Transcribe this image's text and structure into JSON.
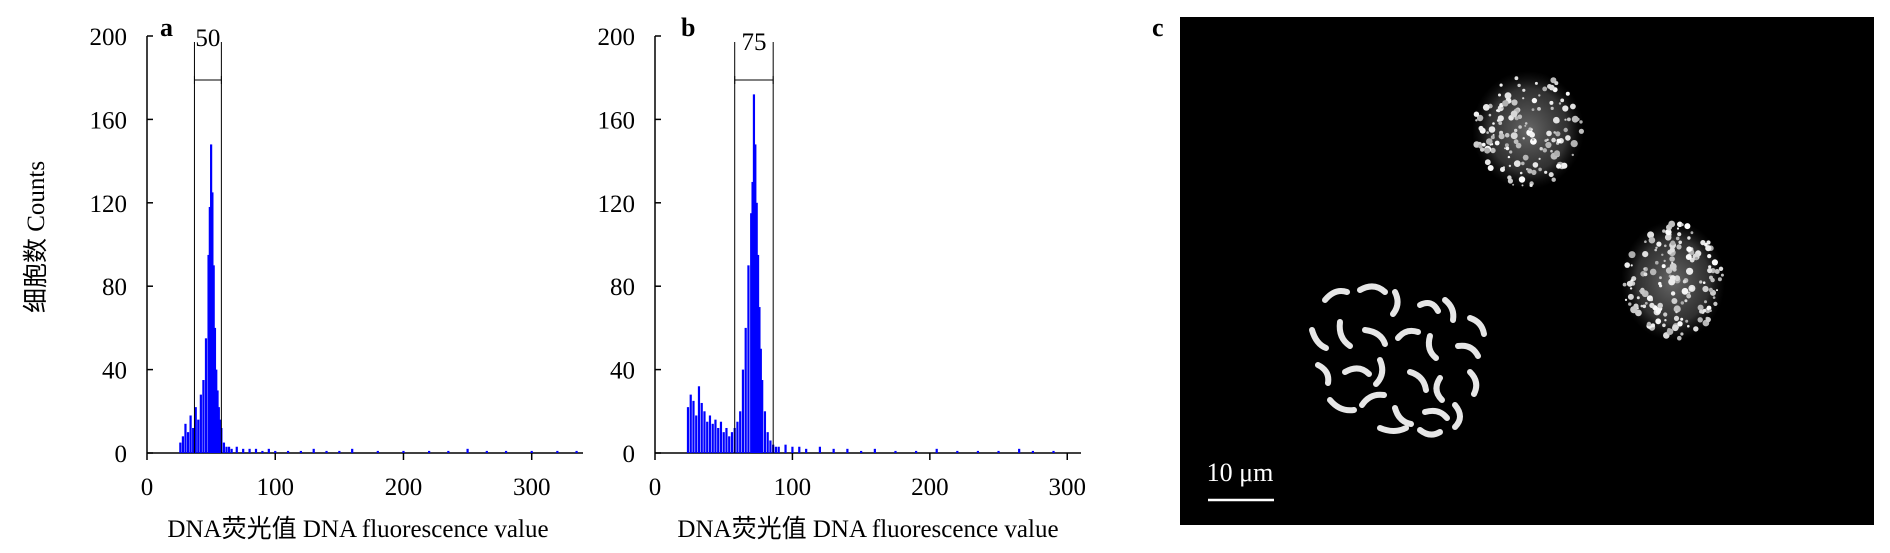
{
  "chart_data": [
    {
      "type": "histogram",
      "panel_label": "a",
      "title": "",
      "xlabel": "DNA荧光值 DNA fluorescence value",
      "ylabel": "细胞数 Counts",
      "xlim": [
        0,
        340
      ],
      "ylim": [
        0,
        200
      ],
      "xticks": [
        0,
        100,
        200,
        300
      ],
      "yticks": [
        0,
        40,
        80,
        120,
        160,
        200
      ],
      "color": "#0000ff",
      "gate": {
        "start": 37,
        "end": 58,
        "label": "50"
      },
      "bins": {
        "x": [
          26,
          28,
          30,
          32,
          34,
          36,
          38,
          40,
          42,
          44,
          46,
          48,
          49,
          50,
          51,
          52,
          53,
          54,
          55,
          56,
          57,
          58,
          60,
          62,
          64,
          66,
          70,
          75,
          80,
          85,
          90,
          95,
          100,
          110,
          120,
          130,
          140,
          150,
          160,
          180,
          200,
          220,
          235,
          250,
          265,
          280,
          300,
          320,
          335
        ],
        "counts": [
          5,
          8,
          14,
          10,
          18,
          12,
          22,
          16,
          28,
          35,
          55,
          95,
          118,
          148,
          125,
          90,
          60,
          40,
          30,
          22,
          16,
          12,
          5,
          3,
          3,
          2,
          3,
          2,
          2,
          2,
          1,
          2,
          1,
          1,
          1,
          2,
          1,
          1,
          2,
          1,
          1,
          1,
          1,
          2,
          1,
          1,
          1,
          1,
          1
        ]
      }
    },
    {
      "type": "histogram",
      "panel_label": "b",
      "title": "",
      "xlabel": "DNA荧光值 DNA fluorescence value",
      "ylabel": "",
      "xlim": [
        0,
        310
      ],
      "ylim": [
        0,
        200
      ],
      "xticks": [
        0,
        100,
        200,
        300
      ],
      "yticks": [
        0,
        40,
        80,
        120,
        160,
        200
      ],
      "color": "#0000ff",
      "gate": {
        "start": 58,
        "end": 86,
        "label": "75"
      },
      "bins": {
        "x": [
          24,
          26,
          28,
          30,
          32,
          34,
          36,
          38,
          40,
          42,
          44,
          46,
          48,
          50,
          52,
          54,
          56,
          58,
          60,
          62,
          64,
          66,
          68,
          70,
          71,
          72,
          73,
          74,
          75,
          76,
          77,
          78,
          80,
          82,
          84,
          86,
          88,
          90,
          95,
          100,
          105,
          110,
          120,
          130,
          140,
          150,
          160,
          175,
          190,
          205,
          220,
          235,
          250,
          265,
          275,
          290
        ],
        "counts": [
          22,
          28,
          25,
          18,
          32,
          24,
          20,
          15,
          18,
          14,
          16,
          12,
          15,
          10,
          12,
          8,
          10,
          12,
          15,
          20,
          40,
          60,
          90,
          115,
          130,
          172,
          148,
          120,
          95,
          70,
          50,
          35,
          20,
          10,
          6,
          4,
          3,
          3,
          4,
          3,
          3,
          2,
          3,
          2,
          2,
          1,
          2,
          1,
          1,
          2,
          1,
          1,
          1,
          2,
          1,
          1
        ]
      }
    }
  ],
  "micrograph": {
    "panel_label": "c",
    "scale_bar_label": "10 μm"
  }
}
